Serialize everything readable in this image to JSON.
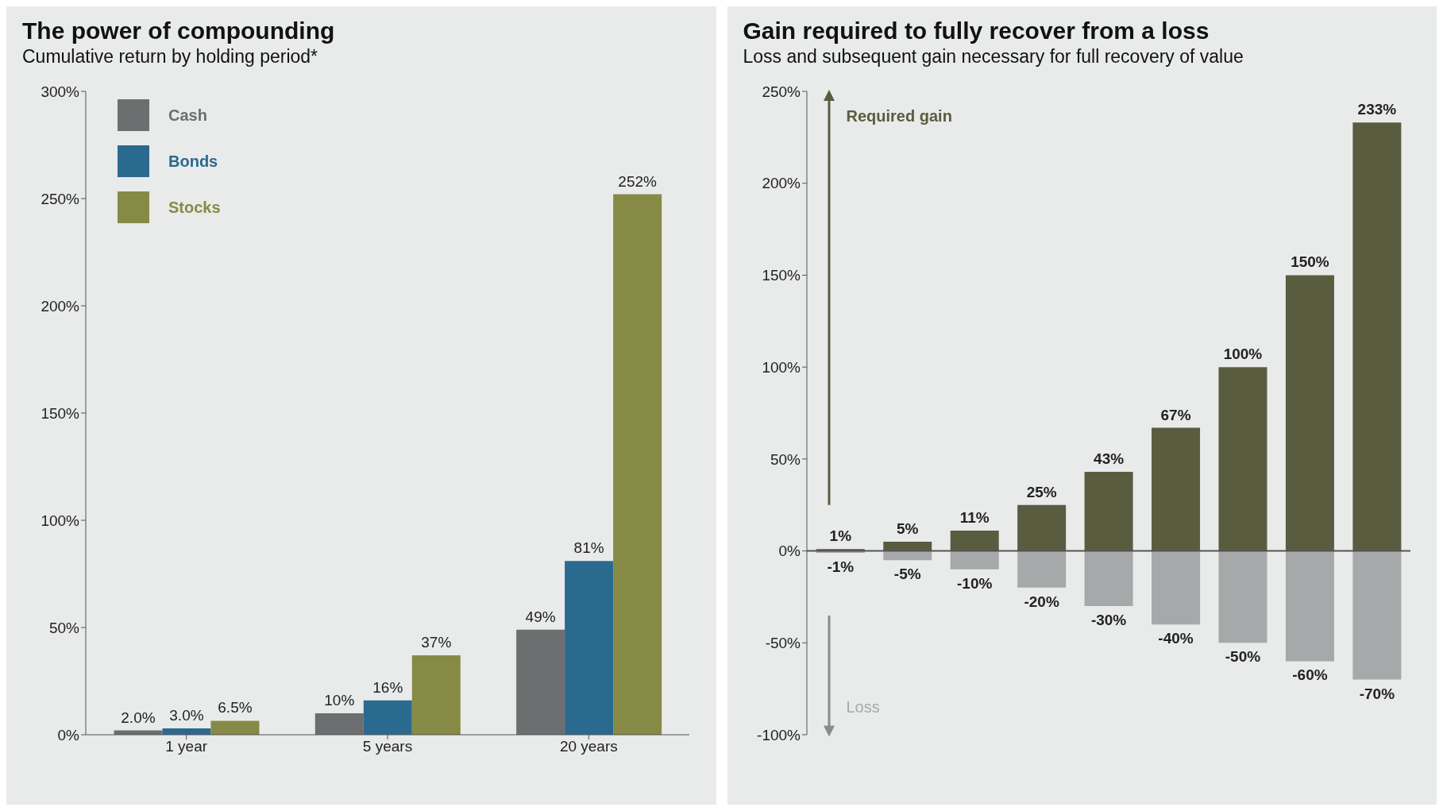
{
  "chart_data": [
    {
      "type": "bar",
      "title": "The power of compounding",
      "subtitle": "Cumulative return by holding period*",
      "categories": [
        "1 year",
        "5 years",
        "20 years"
      ],
      "series": [
        {
          "name": "Cash",
          "color": "#6d6e70",
          "values": [
            2.0,
            10,
            49
          ],
          "value_labels": [
            "2.0%",
            "10%",
            "49%"
          ]
        },
        {
          "name": "Bonds",
          "color": "#2a6a8f",
          "values": [
            3.0,
            16,
            81
          ],
          "value_labels": [
            "3.0%",
            "16%",
            "81%"
          ]
        },
        {
          "name": "Stocks",
          "color": "#868a45",
          "values": [
            6.5,
            37,
            252
          ],
          "value_labels": [
            "6.5%",
            "37%",
            "252%"
          ]
        }
      ],
      "ylim": [
        0,
        300
      ],
      "yticks": [
        {
          "value": 0,
          "label": "0%"
        },
        {
          "value": 50,
          "label": "50%"
        },
        {
          "value": 100,
          "label": "100%"
        },
        {
          "value": 150,
          "label": "150%"
        },
        {
          "value": 200,
          "label": "200%"
        },
        {
          "value": 250,
          "label": "250%"
        },
        {
          "value": 300,
          "label": "300%"
        }
      ],
      "legend": "top left",
      "grid": false
    },
    {
      "type": "bar",
      "title": "Gain required to fully recover from a loss",
      "subtitle": "Loss and subsequent gain necessary for full recovery of value",
      "categories": [
        null,
        null,
        null,
        null,
        null,
        null,
        null,
        null,
        null
      ],
      "stacked": true,
      "series": [
        {
          "name": "Required gain",
          "color": "#5a5c40",
          "values": [
            1,
            5,
            11,
            25,
            43,
            67,
            100,
            150,
            233
          ],
          "value_labels": [
            "1%",
            "5%",
            "11%",
            "25%",
            "43%",
            "67%",
            "100%",
            "150%",
            "233%"
          ]
        },
        {
          "name": "Loss",
          "color": "#a7a8aa",
          "values": [
            -1,
            -5,
            -10,
            -20,
            -30,
            -40,
            -50,
            -60,
            -70
          ],
          "value_labels": [
            "-1%",
            "-5%",
            "-10%",
            "-20%",
            "-30%",
            "-40%",
            "-50%",
            "-60%",
            "-70%"
          ]
        }
      ],
      "ylim": [
        -100,
        250
      ],
      "yticks": [
        {
          "value": -100,
          "label": "-100%"
        },
        {
          "value": -50,
          "label": "-50%"
        },
        {
          "value": 0,
          "label": "0%"
        },
        {
          "value": 50,
          "label": "50%"
        },
        {
          "value": 100,
          "label": "100%"
        },
        {
          "value": 150,
          "label": "150%"
        },
        {
          "value": 200,
          "label": "200%"
        },
        {
          "value": 250,
          "label": "250%"
        }
      ],
      "ref_lines": [
        {
          "axis": "y",
          "value": 0,
          "color": "#555555"
        }
      ],
      "legend": false,
      "grid": false
    }
  ]
}
